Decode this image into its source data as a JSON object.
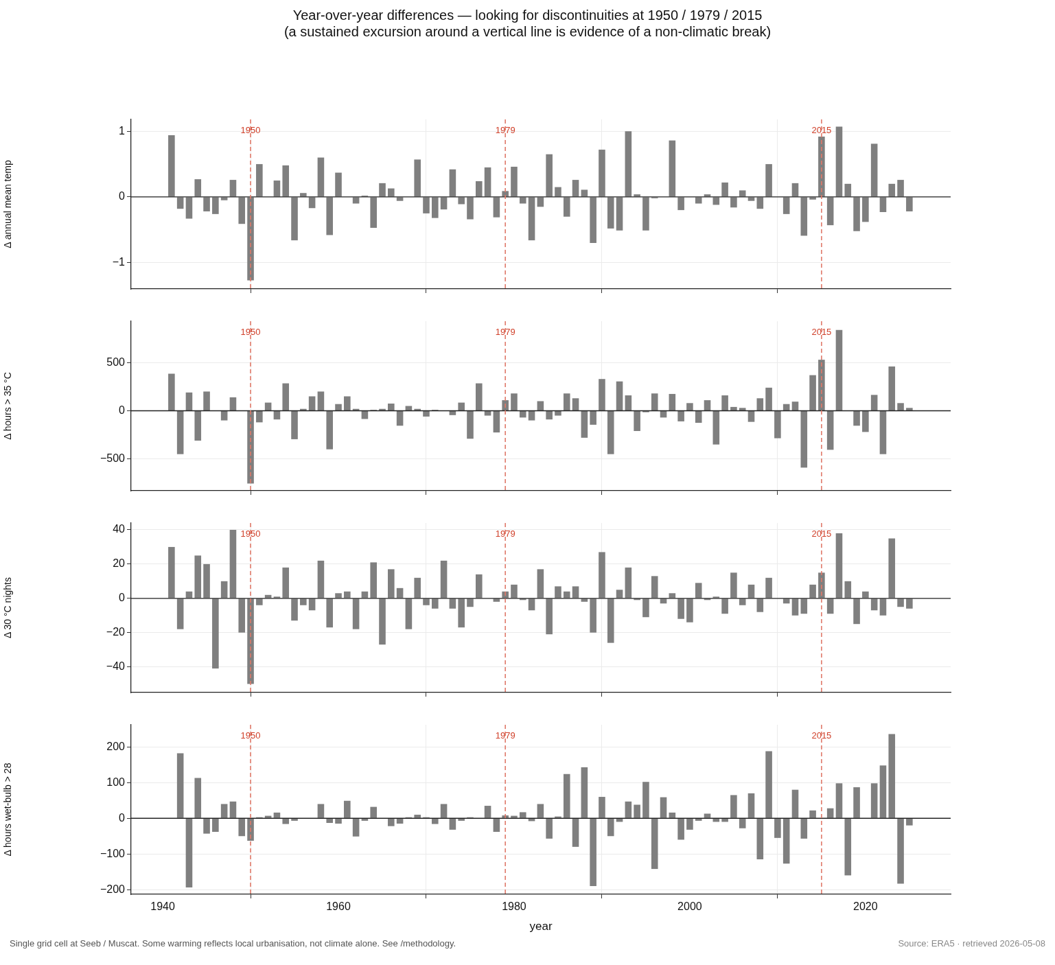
{
  "chart_data": [
    {
      "type": "bar",
      "title": "Year-over-year differences — looking for discontinuities at 1950 / 1979 / 2015",
      "subtitle": "(a sustained excursion around a vertical line is evidence of a non-climatic break)",
      "ylabel": "Δ annual mean temp",
      "x": [
        1941,
        1942,
        1943,
        1944,
        1945,
        1946,
        1947,
        1948,
        1949,
        1950,
        1951,
        1952,
        1953,
        1954,
        1955,
        1956,
        1957,
        1958,
        1959,
        1960,
        1961,
        1962,
        1963,
        1964,
        1965,
        1966,
        1967,
        1968,
        1969,
        1970,
        1971,
        1972,
        1973,
        1974,
        1975,
        1976,
        1977,
        1978,
        1979,
        1980,
        1981,
        1982,
        1983,
        1984,
        1985,
        1986,
        1987,
        1988,
        1989,
        1990,
        1991,
        1992,
        1993,
        1994,
        1995,
        1996,
        1997,
        1998,
        1999,
        2000,
        2001,
        2002,
        2003,
        2004,
        2005,
        2006,
        2007,
        2008,
        2009,
        2010,
        2011,
        2012,
        2013,
        2014,
        2015,
        2016,
        2017,
        2018,
        2019,
        2020,
        2021,
        2022,
        2023,
        2024,
        2025
      ],
      "series": [
        {
          "color": "#7f7f7f",
          "values": [
            0.94,
            -0.18,
            -0.33,
            0.27,
            -0.22,
            -0.26,
            -0.05,
            0.26,
            -0.41,
            -1.27,
            0.5,
            0,
            0.25,
            0.48,
            -0.66,
            0.06,
            -0.17,
            0.6,
            -0.58,
            0.37,
            0,
            -0.1,
            0.02,
            -0.47,
            0.21,
            0.13,
            -0.06,
            0,
            0.57,
            -0.25,
            -0.32,
            -0.19,
            0.42,
            -0.11,
            -0.34,
            0.24,
            0.45,
            -0.31,
            0.09,
            0.46,
            -0.1,
            -0.66,
            -0.15,
            0.65,
            0.15,
            -0.3,
            0.26,
            0.11,
            -0.7,
            0.72,
            -0.48,
            -0.51,
            1.0,
            0.04,
            -0.51,
            -0.02,
            null,
            0.86,
            -0.2,
            null,
            -0.1,
            0.04,
            -0.12,
            0.22,
            -0.16,
            0.1,
            -0.06,
            -0.18,
            0.5,
            0,
            -0.26,
            0.21,
            -0.59,
            -0.04,
            0.92,
            -0.43,
            1.07,
            0.2,
            -0.52,
            -0.38,
            0.81,
            -0.23,
            0.2,
            0.26,
            -0.22
          ]
        }
      ],
      "xlim": [
        1936.4,
        2029.7
      ],
      "xticks": [
        1940,
        1960,
        1980,
        2000,
        2020
      ],
      "ylim": [
        -1.4,
        1.18
      ],
      "yticks": [
        {
          "value": -1,
          "label": "−1"
        },
        0,
        1
      ],
      "ref_lines": [
        {
          "axis": "y",
          "value": 0,
          "color": "#222222"
        },
        {
          "axis": "x",
          "value": 1950,
          "label": "1950",
          "color": "#e07a6a",
          "line_style": "dashed"
        },
        {
          "axis": "x",
          "value": 1979,
          "label": "1979",
          "color": "#e07a6a",
          "line_style": "dashed"
        },
        {
          "axis": "x",
          "value": 2015,
          "label": "2015",
          "color": "#e07a6a",
          "line_style": "dashed"
        }
      ],
      "grid": true,
      "legend": false,
      "tick_labels": "y"
    },
    {
      "type": "bar",
      "ylabel": "Δ hours > 35 °C",
      "x": [
        1941,
        1942,
        1943,
        1944,
        1945,
        1946,
        1947,
        1948,
        1949,
        1950,
        1951,
        1952,
        1953,
        1954,
        1955,
        1956,
        1957,
        1958,
        1959,
        1960,
        1961,
        1962,
        1963,
        1964,
        1965,
        1966,
        1967,
        1968,
        1969,
        1970,
        1971,
        1972,
        1973,
        1974,
        1975,
        1976,
        1977,
        1978,
        1979,
        1980,
        1981,
        1982,
        1983,
        1984,
        1985,
        1986,
        1987,
        1988,
        1989,
        1990,
        1991,
        1992,
        1993,
        1994,
        1995,
        1996,
        1997,
        1998,
        1999,
        2000,
        2001,
        2002,
        2003,
        2004,
        2005,
        2006,
        2007,
        2008,
        2009,
        2010,
        2011,
        2012,
        2013,
        2014,
        2015,
        2016,
        2017,
        2018,
        2019,
        2020,
        2021,
        2022,
        2023,
        2024,
        2025
      ],
      "series": [
        {
          "color": "#7f7f7f",
          "values": [
            385,
            -450,
            190,
            -310,
            200,
            0,
            -100,
            140,
            0,
            -755,
            -120,
            85,
            -90,
            285,
            -295,
            20,
            150,
            200,
            -400,
            70,
            150,
            20,
            -85,
            10,
            20,
            75,
            -155,
            50,
            20,
            -60,
            10,
            0,
            -45,
            85,
            -290,
            285,
            -50,
            -225,
            110,
            180,
            -70,
            -100,
            100,
            -90,
            -50,
            180,
            130,
            -280,
            -145,
            330,
            -450,
            305,
            160,
            -210,
            -15,
            180,
            -70,
            175,
            -110,
            80,
            -125,
            110,
            -350,
            160,
            40,
            30,
            -115,
            130,
            240,
            -285,
            70,
            95,
            -590,
            370,
            530,
            -405,
            840,
            null,
            -155,
            -220,
            165,
            -450,
            460,
            80,
            30
          ]
        }
      ],
      "xlim": [
        1936.4,
        2029.7
      ],
      "xticks": [
        1940,
        1960,
        1980,
        2000,
        2020
      ],
      "ylim": [
        -830,
        930
      ],
      "yticks": [
        {
          "value": -500,
          "label": "−500"
        },
        0,
        500
      ],
      "ref_lines": [
        {
          "axis": "y",
          "value": 0,
          "color": "#222222"
        },
        {
          "axis": "x",
          "value": 1950,
          "label": "1950",
          "color": "#e07a6a",
          "line_style": "dashed"
        },
        {
          "axis": "x",
          "value": 1979,
          "label": "1979",
          "color": "#e07a6a",
          "line_style": "dashed"
        },
        {
          "axis": "x",
          "value": 2015,
          "label": "2015",
          "color": "#e07a6a",
          "line_style": "dashed"
        }
      ],
      "grid": true,
      "legend": false,
      "tick_labels": "y"
    },
    {
      "type": "bar",
      "ylabel": "Δ 30 °C nights",
      "x": [
        1941,
        1942,
        1943,
        1944,
        1945,
        1946,
        1947,
        1948,
        1949,
        1950,
        1951,
        1952,
        1953,
        1954,
        1955,
        1956,
        1957,
        1958,
        1959,
        1960,
        1961,
        1962,
        1963,
        1964,
        1965,
        1966,
        1967,
        1968,
        1969,
        1970,
        1971,
        1972,
        1973,
        1974,
        1975,
        1976,
        1977,
        1978,
        1979,
        1980,
        1981,
        1982,
        1983,
        1984,
        1985,
        1986,
        1987,
        1988,
        1989,
        1990,
        1991,
        1992,
        1993,
        1994,
        1995,
        1996,
        1997,
        1998,
        1999,
        2000,
        2001,
        2002,
        2003,
        2004,
        2005,
        2006,
        2007,
        2008,
        2009,
        2010,
        2011,
        2012,
        2013,
        2014,
        2015,
        2016,
        2017,
        2018,
        2019,
        2020,
        2021,
        2022,
        2023,
        2024,
        2025
      ],
      "series": [
        {
          "color": "#7f7f7f",
          "values": [
            30,
            -18,
            4,
            25,
            20,
            -41,
            10,
            40,
            -20,
            -50,
            -4,
            2,
            1,
            18,
            -13,
            -4,
            -7,
            22,
            -17,
            3,
            4,
            -18,
            4,
            21,
            -27,
            17,
            6,
            -18,
            12,
            -4,
            -6,
            22,
            -6,
            -17,
            -5,
            14,
            0,
            -2,
            4,
            8,
            -1,
            -7,
            17,
            -21,
            7,
            4,
            7,
            -2,
            -20,
            27,
            -26,
            5,
            18,
            -1,
            -11,
            13,
            -3,
            3,
            -12,
            -14,
            9,
            -1,
            1,
            -9,
            15,
            -4,
            8,
            -8,
            12,
            0,
            -3,
            -10,
            -9,
            8,
            15,
            -9,
            38,
            10,
            -15,
            4,
            -7,
            -10,
            35,
            -5,
            -6
          ]
        }
      ],
      "xlim": [
        1936.4,
        2029.7
      ],
      "xticks": [
        1940,
        1960,
        1980,
        2000,
        2020
      ],
      "ylim": [
        -55,
        44
      ],
      "yticks": [
        {
          "value": -40,
          "label": "−40"
        },
        {
          "value": -20,
          "label": "−20"
        },
        0,
        20,
        40
      ],
      "ref_lines": [
        {
          "axis": "y",
          "value": 0,
          "color": "#222222"
        },
        {
          "axis": "x",
          "value": 1950,
          "label": "1950",
          "color": "#e07a6a",
          "line_style": "dashed"
        },
        {
          "axis": "x",
          "value": 1979,
          "label": "1979",
          "color": "#e07a6a",
          "line_style": "dashed"
        },
        {
          "axis": "x",
          "value": 2015,
          "label": "2015",
          "color": "#e07a6a",
          "line_style": "dashed"
        }
      ],
      "grid": true,
      "legend": false,
      "tick_labels": "y"
    },
    {
      "type": "bar",
      "xlabel": "year",
      "ylabel": "Δ hours wet-bulb > 28",
      "x": [
        1941,
        1942,
        1943,
        1944,
        1945,
        1946,
        1947,
        1948,
        1949,
        1950,
        1951,
        1952,
        1953,
        1954,
        1955,
        1956,
        1957,
        1958,
        1959,
        1960,
        1961,
        1962,
        1963,
        1964,
        1965,
        1966,
        1967,
        1968,
        1969,
        1970,
        1971,
        1972,
        1973,
        1974,
        1975,
        1976,
        1977,
        1978,
        1979,
        1980,
        1981,
        1982,
        1983,
        1984,
        1985,
        1986,
        1987,
        1988,
        1989,
        1990,
        1991,
        1992,
        1993,
        1994,
        1995,
        1996,
        1997,
        1998,
        1999,
        2000,
        2001,
        2002,
        2003,
        2004,
        2005,
        2006,
        2007,
        2008,
        2009,
        2010,
        2011,
        2012,
        2013,
        2014,
        2015,
        2016,
        2017,
        2018,
        2019,
        2020,
        2021,
        2022,
        2023,
        2024,
        2025
      ],
      "series": [
        {
          "color": "#7f7f7f",
          "values": [
            0,
            182,
            -194,
            113,
            -43,
            -38,
            40,
            47,
            -50,
            -63,
            3,
            7,
            16,
            -16,
            -7,
            0,
            0,
            40,
            -13,
            -15,
            49,
            -51,
            -7,
            32,
            0,
            -22,
            -15,
            3,
            10,
            3,
            -16,
            40,
            -32,
            -7,
            3,
            1,
            35,
            -38,
            8,
            7,
            17,
            -8,
            40,
            -57,
            5,
            124,
            -80,
            143,
            -190,
            60,
            -50,
            -10,
            47,
            38,
            102,
            -142,
            59,
            16,
            -60,
            -32,
            -7,
            13,
            -10,
            -10,
            65,
            -28,
            70,
            -115,
            188,
            -55,
            -127,
            80,
            -57,
            22,
            0,
            28,
            98,
            -160,
            87,
            0,
            98,
            148,
            236,
            -183,
            -20
          ]
        }
      ],
      "xlim": [
        1936.4,
        2029.7
      ],
      "xticks": [
        1940,
        1960,
        1980,
        2000,
        2020
      ],
      "ylim": [
        -213,
        262
      ],
      "yticks": [
        {
          "value": -200,
          "label": "−200"
        },
        {
          "value": -100,
          "label": "−100"
        },
        0,
        100,
        200
      ],
      "ref_lines": [
        {
          "axis": "y",
          "value": 0,
          "color": "#222222"
        },
        {
          "axis": "x",
          "value": 1950,
          "label": "1950",
          "color": "#e07a6a",
          "line_style": "dashed"
        },
        {
          "axis": "x",
          "value": 1979,
          "label": "1979",
          "color": "#e07a6a",
          "line_style": "dashed"
        },
        {
          "axis": "x",
          "value": 2015,
          "label": "2015",
          "color": "#e07a6a",
          "line_style": "dashed"
        }
      ],
      "grid": true,
      "legend": false,
      "annotations": [
        "Single grid cell at Seeb / Muscat. Some warming reflects local urbanisation, not climate alone. See /methodology.",
        "Source: ERA5 · retrieved 2026-05-08"
      ]
    }
  ]
}
